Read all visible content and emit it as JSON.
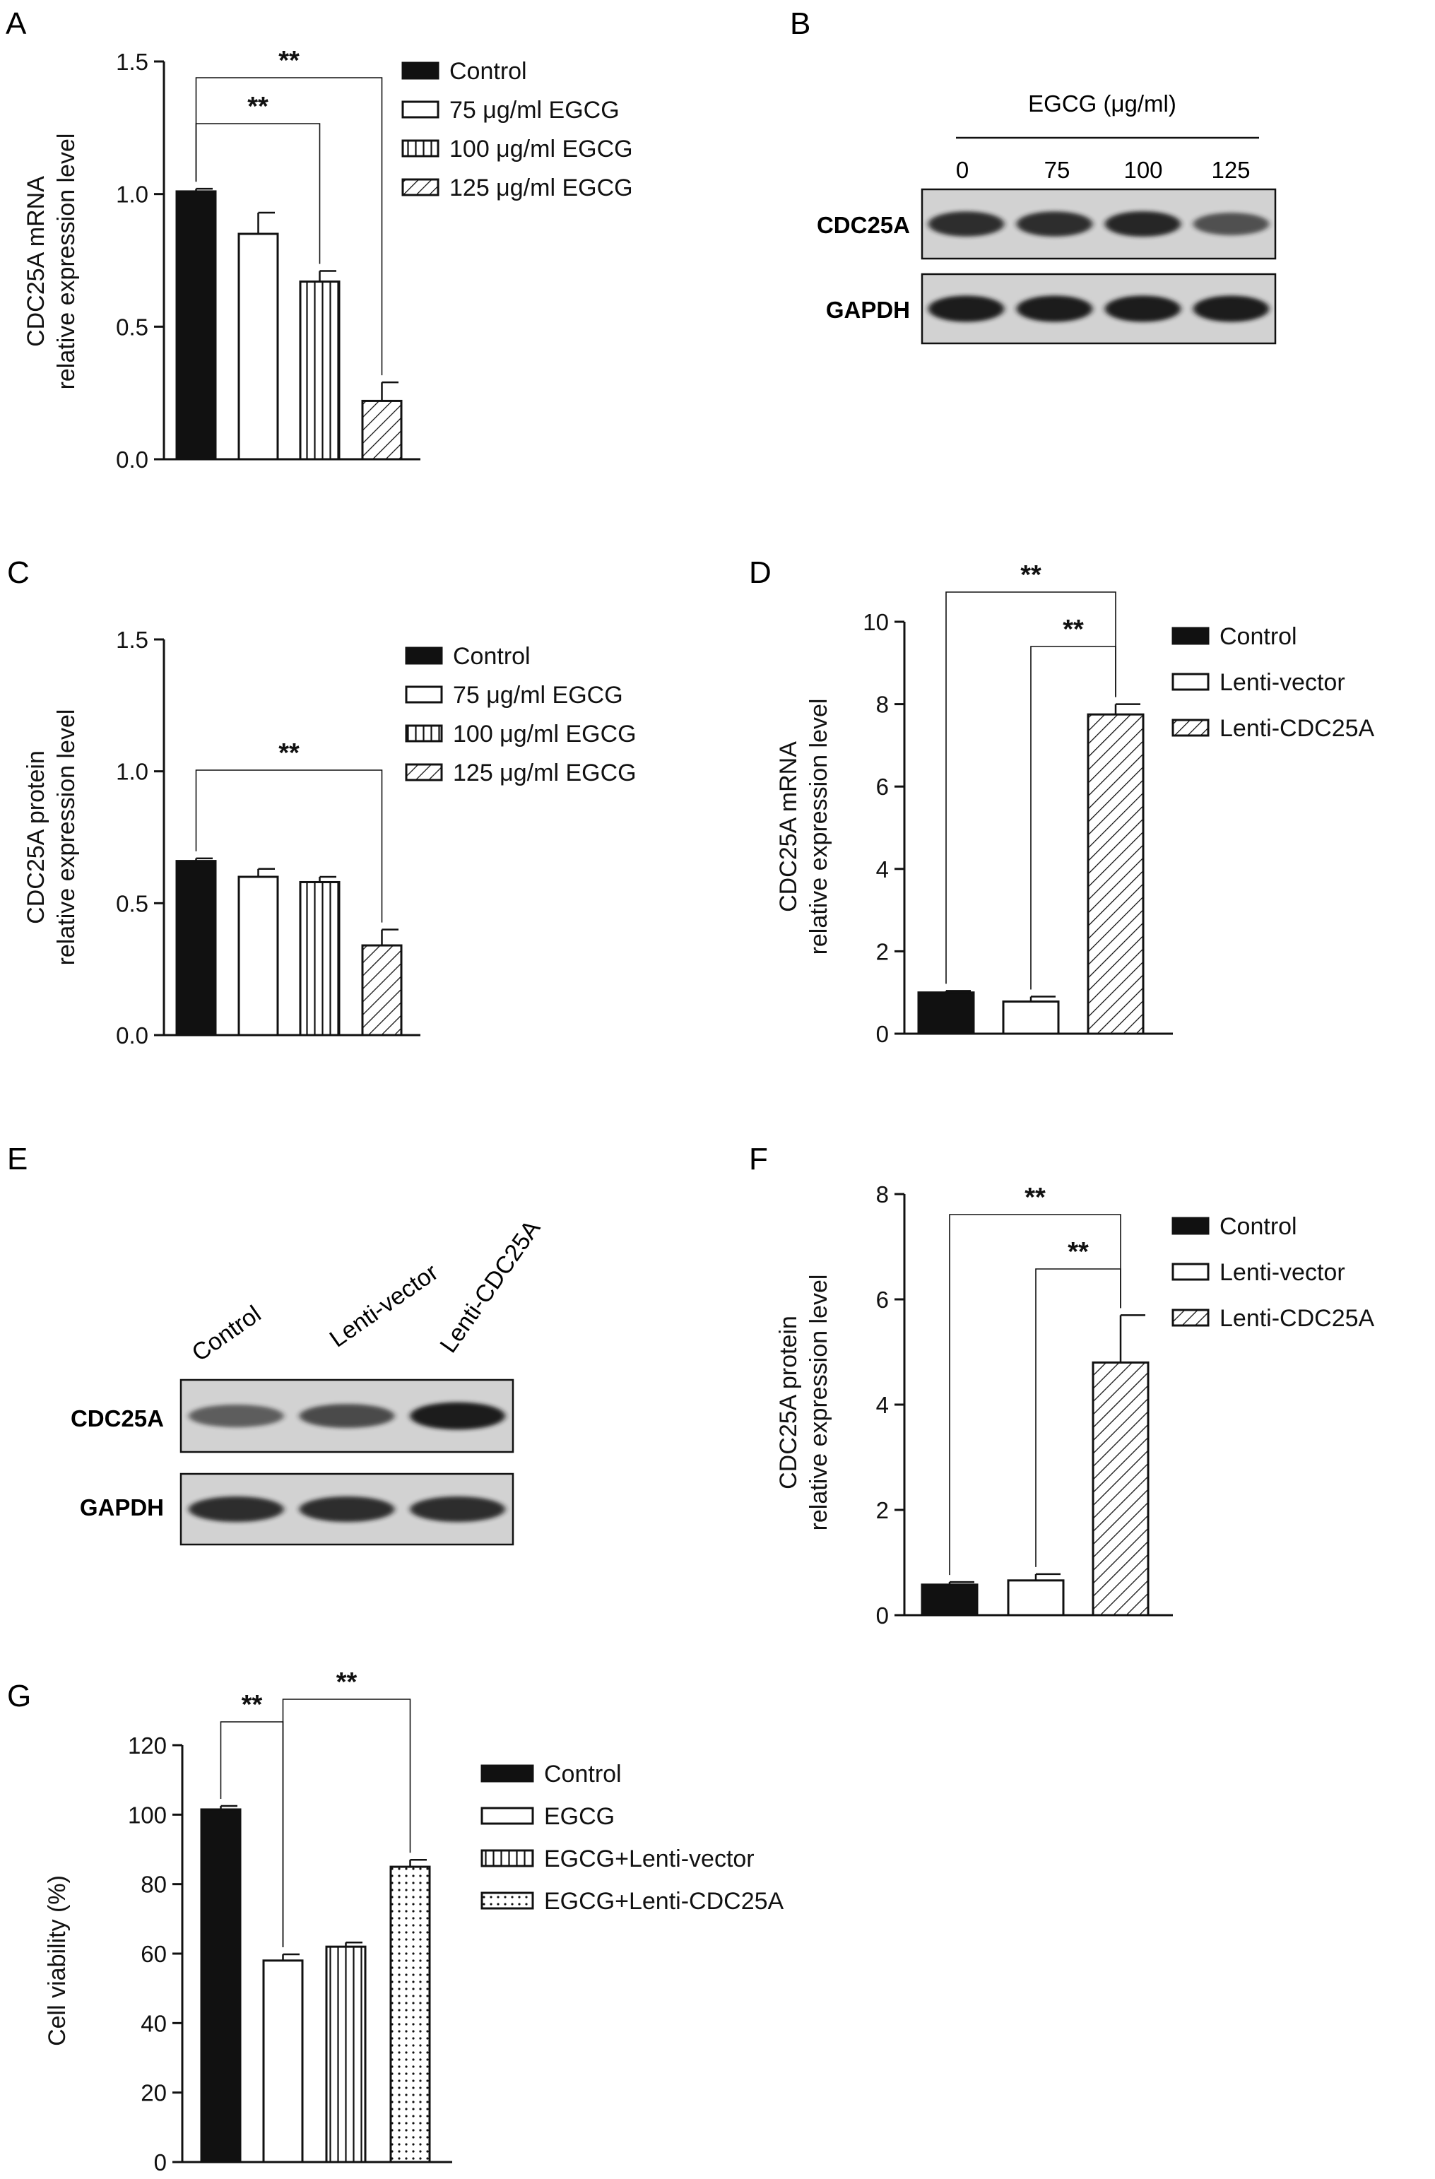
{
  "colors": {
    "ink": "#111111",
    "bar_fill": "#ffffff",
    "solid": "#111111",
    "blot_band": "#1e1e1e",
    "blot_bg": "#d2d2d2"
  },
  "chart_data": [
    {
      "panel": "A",
      "type": "bar",
      "ylabel": [
        "CDC25A mRNA",
        "relative expression level"
      ],
      "ylim": [
        0,
        1.5
      ],
      "yticks": [
        "0.0",
        "0.5",
        "1.0",
        "1.5"
      ],
      "categories": [
        "Control",
        "75 μg/ml EGCG",
        "100 μg/ml EGCG",
        "125 μg/ml EGCG"
      ],
      "values": [
        1.01,
        0.85,
        0.67,
        0.22
      ],
      "errors": [
        0.01,
        0.08,
        0.04,
        0.07
      ],
      "patterns": [
        "solid",
        "open",
        "vertical",
        "diagonal"
      ],
      "significance": [
        {
          "from": 0,
          "to": 2,
          "label": "**"
        },
        {
          "from": 0,
          "to": 3,
          "label": "**"
        }
      ],
      "legend": [
        "Control",
        "75 μg/ml EGCG",
        "100 μg/ml EGCG",
        "125 μg/ml EGCG"
      ]
    },
    {
      "panel": "C",
      "type": "bar",
      "ylabel": [
        "CDC25A protein",
        "relative expression level"
      ],
      "ylim": [
        0,
        1.5
      ],
      "yticks": [
        "0.0",
        "0.5",
        "1.0",
        "1.5"
      ],
      "categories": [
        "Control",
        "75 μg/ml EGCG",
        "100 μg/ml EGCG",
        "125 μg/ml EGCG"
      ],
      "values": [
        0.66,
        0.6,
        0.58,
        0.34
      ],
      "errors": [
        0.01,
        0.03,
        0.02,
        0.06
      ],
      "patterns": [
        "solid",
        "open",
        "vertical",
        "diagonal"
      ],
      "significance": [
        {
          "from": 0,
          "to": 3,
          "label": "**"
        }
      ],
      "legend": [
        "Control",
        "75 μg/ml EGCG",
        "100 μg/ml EGCG",
        "125 μg/ml EGCG"
      ]
    },
    {
      "panel": "D",
      "type": "bar",
      "ylabel": [
        "CDC25A mRNA",
        "relative expression level"
      ],
      "ylim": [
        0,
        10
      ],
      "yticks": [
        "0",
        "2",
        "4",
        "6",
        "8",
        "10"
      ],
      "categories": [
        "Control",
        "Lenti-vector",
        "Lenti-CDC25A"
      ],
      "values": [
        1.0,
        0.78,
        7.75
      ],
      "errors": [
        0.04,
        0.12,
        0.25
      ],
      "patterns": [
        "solid",
        "open",
        "diagonal"
      ],
      "significance": [
        {
          "from": 1,
          "to": 2,
          "label": "**"
        },
        {
          "from": 0,
          "to": 2,
          "label": "**"
        }
      ],
      "legend": [
        "Control",
        "Lenti-vector",
        "Lenti-CDC25A"
      ]
    },
    {
      "panel": "F",
      "type": "bar",
      "ylabel": [
        "CDC25A protein",
        "relative expression level"
      ],
      "ylim": [
        0,
        8
      ],
      "yticks": [
        "0",
        "2",
        "4",
        "6",
        "8"
      ],
      "categories": [
        "Control",
        "Lenti-vector",
        "Lenti-CDC25A"
      ],
      "values": [
        0.58,
        0.66,
        4.8
      ],
      "errors": [
        0.05,
        0.12,
        0.9
      ],
      "patterns": [
        "solid",
        "open",
        "diagonal"
      ],
      "significance": [
        {
          "from": 1,
          "to": 2,
          "label": "**"
        },
        {
          "from": 0,
          "to": 2,
          "label": "**"
        }
      ],
      "legend": [
        "Control",
        "Lenti-vector",
        "Lenti-CDC25A"
      ]
    },
    {
      "panel": "G",
      "type": "bar",
      "ylabel": [
        "Cell viability  (%)"
      ],
      "ylim": [
        0,
        120
      ],
      "yticks": [
        "0",
        "20",
        "40",
        "60",
        "80",
        "100",
        "120"
      ],
      "categories": [
        "Control",
        "EGCG",
        "EGCG+Lenti-vector",
        "EGCG+Lenti-CDC25A"
      ],
      "values": [
        101.5,
        58,
        62,
        85
      ],
      "errors": [
        1,
        1.8,
        1.2,
        2
      ],
      "patterns": [
        "solid",
        "open",
        "vertical",
        "dots"
      ],
      "significance": [
        {
          "from": 0,
          "to": 1,
          "label": "**"
        },
        {
          "from": 1,
          "to": 3,
          "label": "**"
        }
      ],
      "legend": [
        "Control",
        "EGCG",
        "EGCG+Lenti-vector",
        "EGCG+Lenti-CDC25A"
      ]
    }
  ],
  "blots": [
    {
      "panel": "B",
      "header": "EGCG (μg/ml)",
      "lanes": [
        "0",
        "75",
        "100",
        "125"
      ],
      "rows": [
        {
          "label": "CDC25A",
          "intensity": [
            0.85,
            0.85,
            0.9,
            0.55
          ]
        },
        {
          "label": "GAPDH",
          "intensity": [
            1.0,
            1.0,
            1.0,
            1.0
          ]
        }
      ]
    },
    {
      "panel": "E",
      "lanes": [
        "Control",
        "Lenti-vector",
        "Lenti-CDC25A"
      ],
      "rows": [
        {
          "label": "CDC25A",
          "intensity": [
            0.45,
            0.6,
            1.0
          ]
        },
        {
          "label": "GAPDH",
          "intensity": [
            0.85,
            0.85,
            0.85
          ]
        }
      ]
    }
  ],
  "panel_letters": [
    "A",
    "B",
    "C",
    "D",
    "E",
    "F",
    "G"
  ]
}
